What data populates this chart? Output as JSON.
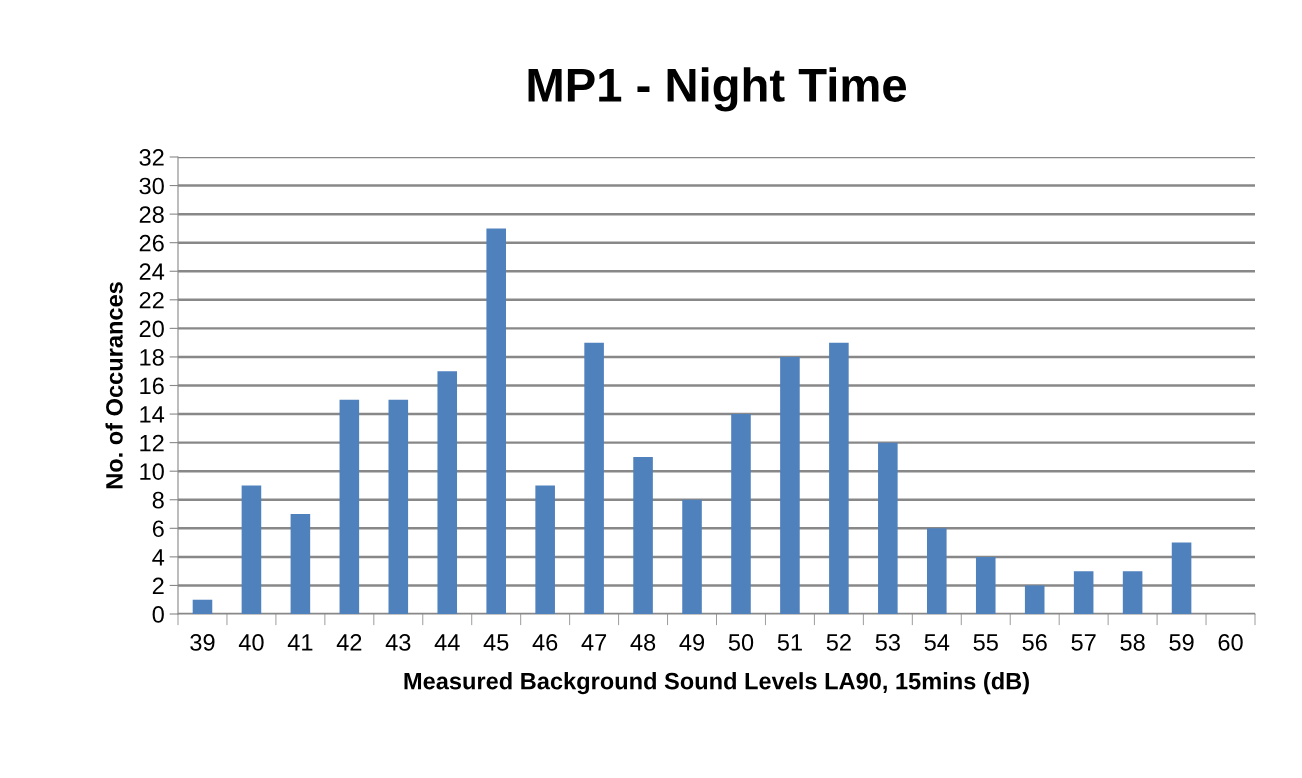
{
  "chart_data": {
    "type": "bar",
    "title": "MP1 - Night Time",
    "xlabel": "Measured Background Sound Levels LA90, 15mins (dB)",
    "ylabel": "No. of Occurances",
    "categories": [
      "39",
      "40",
      "41",
      "42",
      "43",
      "44",
      "45",
      "46",
      "47",
      "48",
      "49",
      "50",
      "51",
      "52",
      "53",
      "54",
      "55",
      "56",
      "57",
      "58",
      "59",
      "60"
    ],
    "values": [
      1,
      9,
      7,
      15,
      15,
      17,
      27,
      9,
      19,
      11,
      8,
      14,
      18,
      19,
      12,
      6,
      4,
      2,
      3,
      3,
      5,
      null
    ],
    "color": "#4f81bd",
    "ylim": [
      0,
      32
    ],
    "yticks": [
      0,
      2,
      4,
      6,
      8,
      10,
      12,
      14,
      16,
      18,
      20,
      22,
      24,
      26,
      28,
      30,
      32
    ],
    "grid": "y",
    "legend": false
  }
}
